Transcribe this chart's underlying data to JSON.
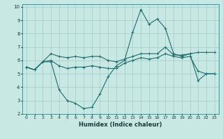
{
  "title": "",
  "xlabel": "Humidex (Indice chaleur)",
  "background_color": "#c8e8e4",
  "grid_color": "#a8d0cc",
  "line_color": "#1a6e6e",
  "xlim": [
    -0.5,
    23.5
  ],
  "ylim": [
    2,
    10.2
  ],
  "yticks": [
    2,
    3,
    4,
    5,
    6,
    7,
    8,
    9,
    10
  ],
  "xticks": [
    0,
    1,
    2,
    3,
    4,
    5,
    6,
    7,
    8,
    9,
    10,
    11,
    12,
    13,
    14,
    15,
    16,
    17,
    18,
    19,
    20,
    21,
    22,
    23
  ],
  "line1_x": [
    0,
    1,
    2,
    3,
    4,
    5,
    6,
    7,
    8,
    9,
    10,
    11,
    12,
    13,
    14,
    15,
    16,
    17,
    18,
    19,
    20,
    21,
    22,
    23
  ],
  "line1_y": [
    5.5,
    5.3,
    5.9,
    5.9,
    3.8,
    3.0,
    2.8,
    2.4,
    2.5,
    3.5,
    4.8,
    5.6,
    6.0,
    8.1,
    9.8,
    8.7,
    9.1,
    8.4,
    6.5,
    6.3,
    6.5,
    4.5,
    5.0,
    5.0
  ],
  "line2_x": [
    0,
    1,
    2,
    3,
    4,
    5,
    6,
    7,
    8,
    9,
    10,
    11,
    12,
    13,
    14,
    15,
    16,
    17,
    18,
    19,
    20,
    21,
    22,
    23
  ],
  "line2_y": [
    5.5,
    5.3,
    5.9,
    6.5,
    6.3,
    6.2,
    6.3,
    6.2,
    6.3,
    6.3,
    6.0,
    5.9,
    6.1,
    6.3,
    6.5,
    6.5,
    6.5,
    7.0,
    6.4,
    6.4,
    6.5,
    6.6,
    6.6,
    6.6
  ],
  "line3_x": [
    0,
    1,
    2,
    3,
    4,
    5,
    6,
    7,
    8,
    9,
    10,
    11,
    12,
    13,
    14,
    15,
    16,
    17,
    18,
    19,
    20,
    21,
    22,
    23
  ],
  "line3_y": [
    5.5,
    5.3,
    5.9,
    6.0,
    5.6,
    5.4,
    5.5,
    5.5,
    5.6,
    5.5,
    5.4,
    5.4,
    5.8,
    6.0,
    6.2,
    6.1,
    6.2,
    6.5,
    6.3,
    6.2,
    6.3,
    5.2,
    5.0,
    5.0
  ],
  "marker_size": 3,
  "line_width": 0.8,
  "xlabel_fontsize": 6,
  "tick_fontsize": 5,
  "xlabel_color": "#1a3a3a",
  "tick_color": "#1a3a3a"
}
